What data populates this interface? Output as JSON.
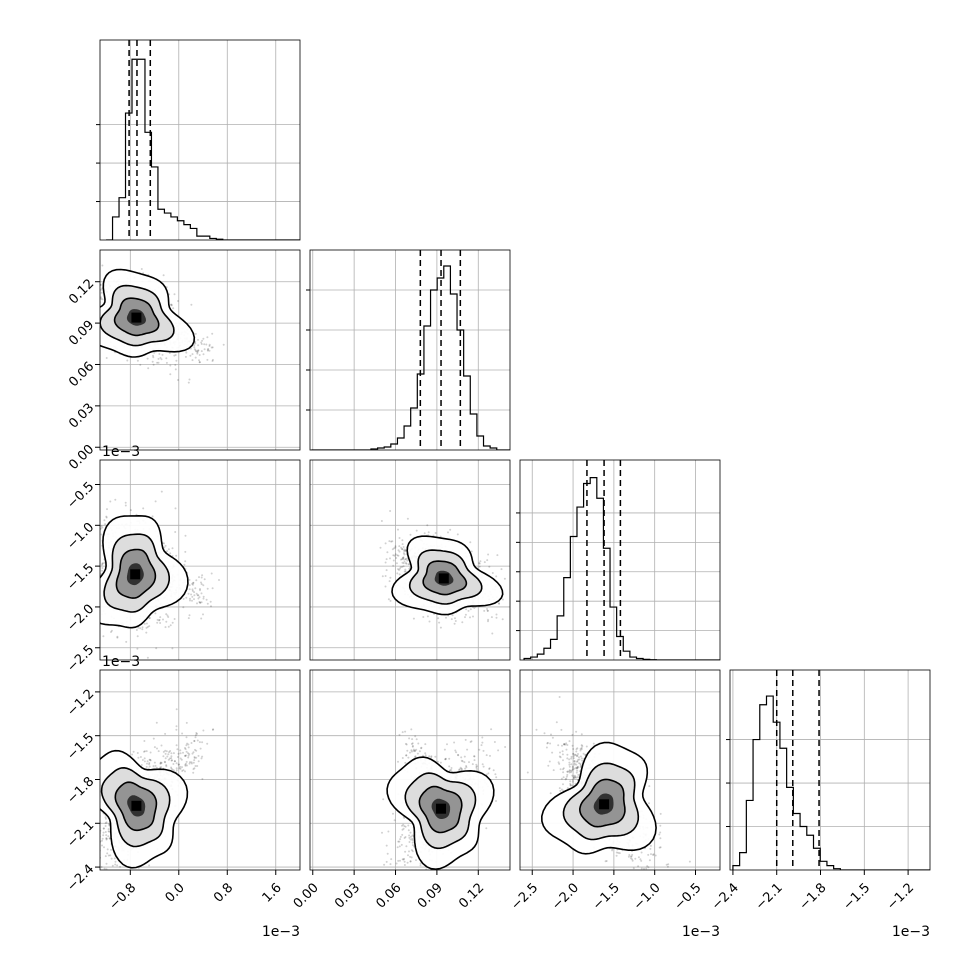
{
  "chart_data": {
    "type": "corner",
    "grid": true,
    "offset_text": "1e−3",
    "parameters": [
      {
        "index": 0,
        "range": [
          -1.3,
          2.0
        ],
        "scale_exponent": -3,
        "ticks": [
          -0.8,
          0.0,
          0.8,
          1.6
        ],
        "tick_labels": [
          "−0.8",
          "0.0",
          "0.8",
          "1.6"
        ],
        "quantiles": [
          -0.82,
          -0.69,
          -0.47
        ]
      },
      {
        "index": 1,
        "range": [
          -0.002,
          0.143
        ],
        "scale_exponent": 0,
        "ticks": [
          0.0,
          0.03,
          0.06,
          0.09,
          0.12
        ],
        "tick_labels": [
          "0.00",
          "0.03",
          "0.06",
          "0.09",
          "0.12"
        ],
        "quantiles": [
          0.078,
          0.093,
          0.107
        ]
      },
      {
        "index": 2,
        "range": [
          -2.65,
          -0.2
        ],
        "scale_exponent": -3,
        "ticks": [
          -2.5,
          -2.0,
          -1.5,
          -1.0,
          -0.5
        ],
        "tick_labels": [
          "−2.5",
          "−2.0",
          "−1.5",
          "−1.0",
          "−0.5"
        ],
        "quantiles": [
          -1.83,
          -1.62,
          -1.42
        ]
      },
      {
        "index": 3,
        "range": [
          -2.42,
          -1.05
        ],
        "scale_exponent": -3,
        "ticks": [
          -2.4,
          -2.1,
          -1.8,
          -1.5,
          -1.2
        ],
        "tick_labels": [
          "−2.4",
          "−2.1",
          "−1.8",
          "−1.5",
          "−1.2"
        ],
        "quantiles": [
          -2.1,
          -1.99,
          -1.81
        ]
      }
    ],
    "histograms": [
      {
        "param": 0,
        "x_edges_start": -1.2,
        "bin_width": 0.107,
        "counts": [
          0,
          6,
          11,
          33,
          47,
          47,
          28,
          19,
          8,
          7,
          6,
          5,
          4,
          3,
          1,
          1,
          0.4,
          0.2,
          0,
          0,
          0,
          0,
          0,
          0,
          0,
          0,
          0,
          0,
          0,
          0
        ],
        "y_max": 52,
        "y_ticks": [
          10,
          20,
          30
        ]
      },
      {
        "param": 1,
        "x_edges_start": -0.001,
        "bin_width": 0.0048,
        "counts": [
          0,
          0,
          0,
          0,
          0,
          0,
          0,
          0,
          0,
          0.5,
          1,
          1.5,
          3,
          6,
          12,
          21,
          38,
          62,
          80,
          86,
          92,
          78,
          60,
          37,
          18,
          7,
          2,
          1,
          0,
          0
        ],
        "y_max": 100,
        "y_ticks": [
          20,
          40,
          60,
          80
        ]
      },
      {
        "param": 2,
        "x_edges_start": -2.6,
        "bin_width": 0.081,
        "counts": [
          0.5,
          1,
          2,
          4,
          7,
          15,
          28,
          42,
          52,
          60,
          62,
          55,
          38,
          18,
          8,
          3,
          1,
          0.5,
          0.2,
          0.1,
          0,
          0,
          0,
          0,
          0,
          0,
          0,
          0,
          0,
          0
        ],
        "y_max": 68,
        "y_ticks": [
          10,
          20,
          30,
          40,
          50
        ]
      },
      {
        "param": 3,
        "x_edges_start": -2.4,
        "bin_width": 0.046,
        "counts": [
          1,
          4,
          16,
          30,
          38,
          40,
          34,
          28,
          19,
          13,
          10,
          8,
          5,
          2,
          1,
          0.3,
          0,
          0,
          0,
          0,
          0,
          0,
          0,
          0,
          0,
          0,
          0,
          0,
          0,
          0
        ],
        "y_max": 46,
        "y_ticks": [
          10,
          20,
          30
        ]
      }
    ],
    "pairs": [
      {
        "x_param": 0,
        "y_param": 1,
        "center": [
          -0.7,
          0.094
        ],
        "sigma": [
          0.35,
          0.013
        ],
        "rho": -0.45,
        "tail": [
          0.5,
          0.068
        ]
      },
      {
        "x_param": 0,
        "y_param": 2,
        "center": [
          -0.72,
          -1.6
        ],
        "sigma": [
          0.3,
          0.3
        ],
        "rho": -0.2,
        "tail": [
          0.5,
          -1.85
        ]
      },
      {
        "x_param": 1,
        "y_param": 2,
        "center": [
          0.095,
          -1.65
        ],
        "sigma": [
          0.015,
          0.2
        ],
        "rho": -0.3,
        "tail": [
          0.06,
          -1.3
        ]
      },
      {
        "x_param": 0,
        "y_param": 3,
        "center": [
          -0.7,
          -1.98
        ],
        "sigma": [
          0.3,
          0.17
        ],
        "rho": 0.55,
        "tail": [
          0.4,
          -1.55
        ]
      },
      {
        "x_param": 1,
        "y_param": 3,
        "center": [
          0.093,
          -2.0
        ],
        "sigma": [
          0.014,
          0.16
        ],
        "rho": 0.6,
        "tail": [
          0.07,
          -1.55
        ]
      },
      {
        "x_param": 2,
        "y_param": 3,
        "center": [
          -1.62,
          -1.97
        ],
        "sigma": [
          0.25,
          0.17
        ],
        "rho": -0.7,
        "tail": [
          -1.9,
          -1.65
        ]
      }
    ]
  }
}
